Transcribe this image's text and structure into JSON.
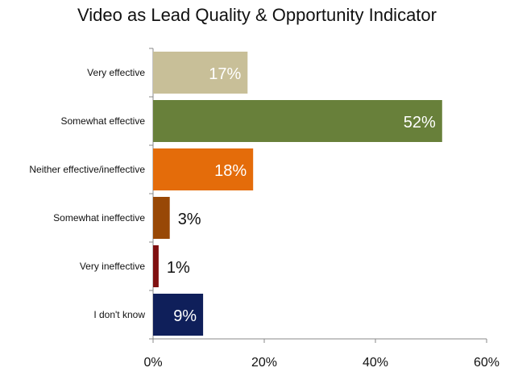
{
  "chart_data": {
    "type": "bar",
    "orientation": "horizontal",
    "title": "Video as Lead Quality & Opportunity Indicator",
    "categories": [
      "Very effective",
      "Somewhat effective",
      "Neither effective/ineffective",
      "Somewhat ineffective",
      "Very ineffective",
      "I don't know"
    ],
    "values": [
      17,
      52,
      18,
      3,
      1,
      9
    ],
    "value_labels": [
      "17%",
      "52%",
      "18%",
      "3%",
      "1%",
      "9%"
    ],
    "colors": [
      "#c8bf98",
      "#68803a",
      "#e46c0a",
      "#984806",
      "#7f1010",
      "#0f1f5a"
    ],
    "label_colors": [
      "#ffffff",
      "#ffffff",
      "#ffffff",
      "#111111",
      "#111111",
      "#ffffff"
    ],
    "label_inside": [
      true,
      true,
      true,
      false,
      false,
      true
    ],
    "xlim": [
      0,
      60
    ],
    "xticks": [
      0,
      20,
      40,
      60
    ],
    "xtick_labels": [
      "0%",
      "20%",
      "40%",
      "60%"
    ],
    "xlabel": "",
    "ylabel": "",
    "grid": false
  }
}
